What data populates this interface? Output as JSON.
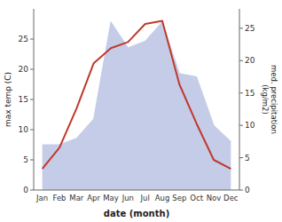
{
  "chart_data": {
    "type": "line",
    "categories": [
      "Jan",
      "Feb",
      "Mar",
      "Apr",
      "May",
      "Jun",
      "Jul",
      "Aug",
      "Sep",
      "Oct",
      "Nov",
      "Dec"
    ],
    "xlabel": "date (month)",
    "ylabel": "max temp (C)",
    "y2label": "med. precipitation\n(kg/m2)",
    "ylim": [
      0,
      30
    ],
    "yticks": [
      0,
      5,
      10,
      15,
      20,
      25
    ],
    "y2lim": [
      0,
      28
    ],
    "y2ticks": [
      0,
      5,
      10,
      15,
      20,
      25
    ],
    "series": [
      {
        "type": "area",
        "axis": "y2",
        "color": "#c5cce8",
        "values": [
          7.0,
          7.0,
          8.0,
          11.0,
          26.0,
          22.0,
          23.0,
          26.0,
          18.0,
          17.5,
          10.0,
          7.5
        ]
      },
      {
        "type": "line",
        "color": "#c0392b",
        "values": [
          3.5,
          7.0,
          13.5,
          21.0,
          23.5,
          24.5,
          27.5,
          28.0,
          17.5,
          11.0,
          5.0,
          3.5
        ]
      }
    ]
  }
}
